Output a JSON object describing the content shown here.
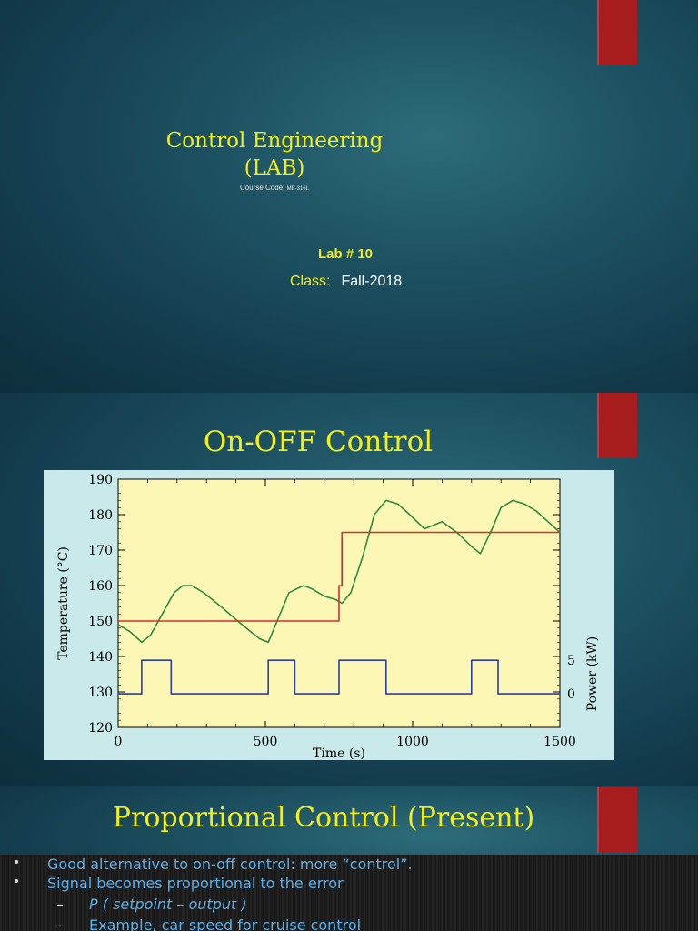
{
  "slide1": {
    "title_line1": "Control Engineering",
    "title_line2": "(LAB)",
    "course_label": "Course Code:",
    "course_code": "ME-316L",
    "lab_number": "Lab # 10",
    "class_label": "Class:",
    "class_value": "Fall-2018"
  },
  "slide2": {
    "title": "On-OFF Control"
  },
  "chart_data": {
    "type": "line",
    "xlabel": "Time (s)",
    "ylabel": "Temperature (°C)",
    "y2label": "Power (kW)",
    "xlim": [
      0,
      1500
    ],
    "ylim": [
      120,
      190
    ],
    "x_ticks": [
      0,
      500,
      1000,
      1500
    ],
    "y_ticks": [
      120,
      130,
      140,
      150,
      160,
      170,
      180,
      190
    ],
    "y2_ticks": [
      0,
      5
    ],
    "y2lim": [
      -5,
      32
    ],
    "grid": false,
    "background_color": "#fdf7b5",
    "series": [
      {
        "color": "#2e8b3e",
        "axis": "left",
        "x": [
          0,
          40,
          80,
          110,
          150,
          190,
          220,
          250,
          290,
          350,
          420,
          480,
          510,
          540,
          580,
          630,
          660,
          700,
          740,
          760,
          790,
          830,
          870,
          910,
          950,
          990,
          1040,
          1100,
          1150,
          1200,
          1230,
          1270,
          1300,
          1340,
          1380,
          1420,
          1460,
          1500
        ],
        "y": [
          149,
          147,
          144,
          146,
          152,
          158,
          160,
          160,
          158,
          154,
          149,
          145,
          144,
          150,
          158,
          160,
          159,
          157,
          156,
          155,
          158,
          168,
          180,
          184,
          183,
          180,
          176,
          178,
          175,
          171,
          169,
          176,
          182,
          184,
          183,
          181,
          178,
          175
        ]
      },
      {
        "color": "#d03030",
        "axis": "left",
        "x": [
          0,
          750,
          750,
          760,
          760,
          1500
        ],
        "y": [
          150,
          150,
          160,
          160,
          175,
          175
        ]
      },
      {
        "color": "#2a3f9e",
        "axis": "right",
        "x": [
          0,
          80,
          80,
          180,
          180,
          510,
          510,
          600,
          600,
          750,
          750,
          910,
          910,
          1200,
          1200,
          1290,
          1290,
          1500
        ],
        "y": [
          0,
          0,
          5,
          5,
          0,
          0,
          5,
          5,
          0,
          0,
          5,
          5,
          0,
          0,
          5,
          5,
          0,
          0
        ]
      }
    ]
  },
  "slide3": {
    "title": "Proportional Control (Present)",
    "bullets": [
      {
        "marker": "•",
        "text": "Good alternative to on-off control: more “control”."
      },
      {
        "marker": "•",
        "text": "Signal becomes proportional to the error"
      },
      {
        "marker": "–",
        "text": "P ( setpoint – output )"
      },
      {
        "marker": "–",
        "text": "Example, car speed for cruise control"
      }
    ]
  },
  "colors": {
    "accent_yellow": "#f2ef1b",
    "tab_red": "#a71d1d",
    "bullet_blue": "#5fb0e8"
  }
}
